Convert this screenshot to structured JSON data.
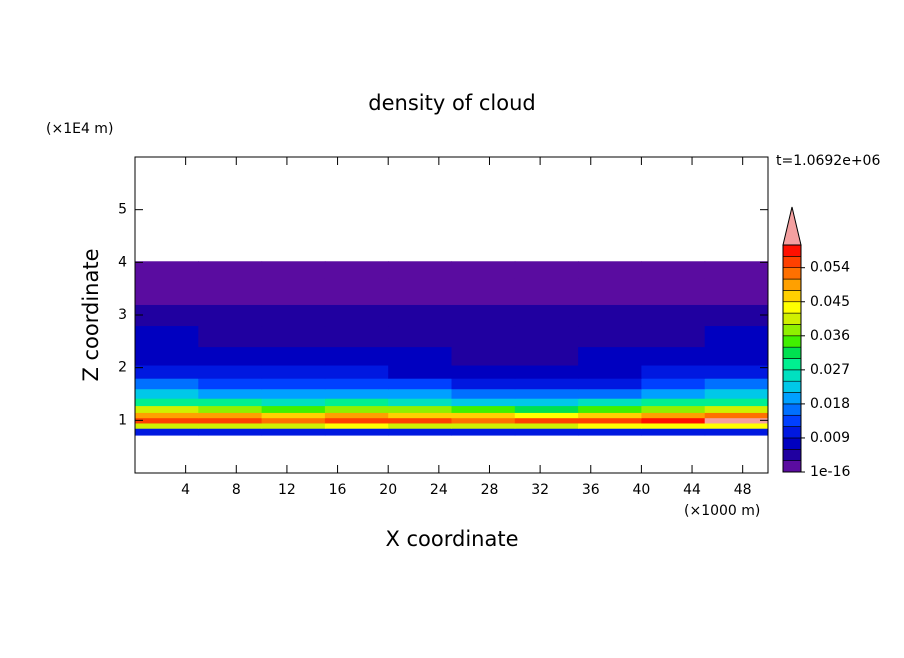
{
  "chart_data": {
    "type": "contour",
    "title": "density of cloud",
    "time_label": "t=1.0692e+06",
    "xlabel": "X coordinate",
    "ylabel": "Z coordinate",
    "x_unit": "(×1000 m)",
    "y_unit": "(×1E4 m)",
    "xlim": [
      0,
      50
    ],
    "ylim": [
      0,
      6
    ],
    "xticks": [
      4,
      8,
      12,
      16,
      20,
      24,
      28,
      32,
      36,
      40,
      44,
      48
    ],
    "yticks": [
      1,
      2,
      3,
      4,
      5
    ],
    "x_edges": [
      0,
      5,
      10,
      15,
      20,
      25,
      30,
      35,
      40,
      45,
      50
    ],
    "z_edges": [
      0.72,
      0.85,
      0.95,
      1.05,
      1.15,
      1.28,
      1.42,
      1.6,
      1.8,
      2.05,
      2.4,
      2.8,
      3.2,
      3.7,
      4.02
    ],
    "values": [
      [
        0.012,
        0.012,
        0.011,
        0.012,
        0.012,
        0.011,
        0.012,
        0.012,
        0.012,
        0.012
      ],
      [
        0.04,
        0.042,
        0.041,
        0.043,
        0.042,
        0.04,
        0.041,
        0.043,
        0.044,
        0.045
      ],
      [
        0.055,
        0.056,
        0.054,
        0.057,
        0.056,
        0.054,
        0.055,
        0.057,
        0.058,
        0.061
      ],
      [
        0.05,
        0.049,
        0.047,
        0.05,
        0.048,
        0.046,
        0.045,
        0.047,
        0.05,
        0.052
      ],
      [
        0.04,
        0.038,
        0.036,
        0.038,
        0.037,
        0.034,
        0.033,
        0.035,
        0.038,
        0.04
      ],
      [
        0.03,
        0.029,
        0.027,
        0.028,
        0.027,
        0.024,
        0.022,
        0.025,
        0.028,
        0.03
      ],
      [
        0.022,
        0.021,
        0.02,
        0.02,
        0.019,
        0.017,
        0.016,
        0.018,
        0.02,
        0.022
      ],
      [
        0.016,
        0.015,
        0.014,
        0.014,
        0.013,
        0.012,
        0.011,
        0.012,
        0.014,
        0.016
      ],
      [
        0.012,
        0.011,
        0.01,
        0.01,
        0.009,
        0.008,
        0.008,
        0.009,
        0.01,
        0.011
      ],
      [
        0.009,
        0.008,
        0.008,
        0.007,
        0.007,
        0.006,
        0.006,
        0.007,
        0.008,
        0.009
      ],
      [
        0.007,
        0.006,
        0.006,
        0.006,
        0.005,
        0.005,
        0.005,
        0.006,
        0.006,
        0.007
      ],
      [
        0.004,
        0.004,
        0.004,
        0.004,
        0.004,
        0.004,
        0.004,
        0.004,
        0.004,
        0.004
      ],
      [
        0.002,
        0.002,
        0.002,
        0.002,
        0.002,
        0.002,
        0.002,
        0.002,
        0.002,
        0.002
      ],
      [
        0.001,
        0.001,
        0.0005,
        0.001,
        0.001,
        0.001,
        0.001,
        0.001,
        0.001,
        0.001
      ]
    ],
    "levels": [
      1e-16,
      0.003,
      0.006,
      0.009,
      0.012,
      0.015,
      0.018,
      0.021,
      0.024,
      0.027,
      0.03,
      0.033,
      0.036,
      0.039,
      0.042,
      0.045,
      0.048,
      0.051,
      0.054,
      0.057,
      0.06
    ],
    "colors": [
      "#5a0ca0",
      "#2000a0",
      "#0000c0",
      "#0018e0",
      "#0040ff",
      "#0070ff",
      "#00a0ff",
      "#00c8e8",
      "#00e0c0",
      "#00f090",
      "#00e050",
      "#40f000",
      "#90f000",
      "#d0f000",
      "#ffff00",
      "#ffd000",
      "#ffa000",
      "#ff7000",
      "#ff4000",
      "#ff1000"
    ],
    "over_color": "#f4a0a0",
    "colorbar_ticks": [
      1e-16,
      0.009,
      0.018,
      0.027,
      0.036,
      0.045,
      0.054
    ]
  }
}
